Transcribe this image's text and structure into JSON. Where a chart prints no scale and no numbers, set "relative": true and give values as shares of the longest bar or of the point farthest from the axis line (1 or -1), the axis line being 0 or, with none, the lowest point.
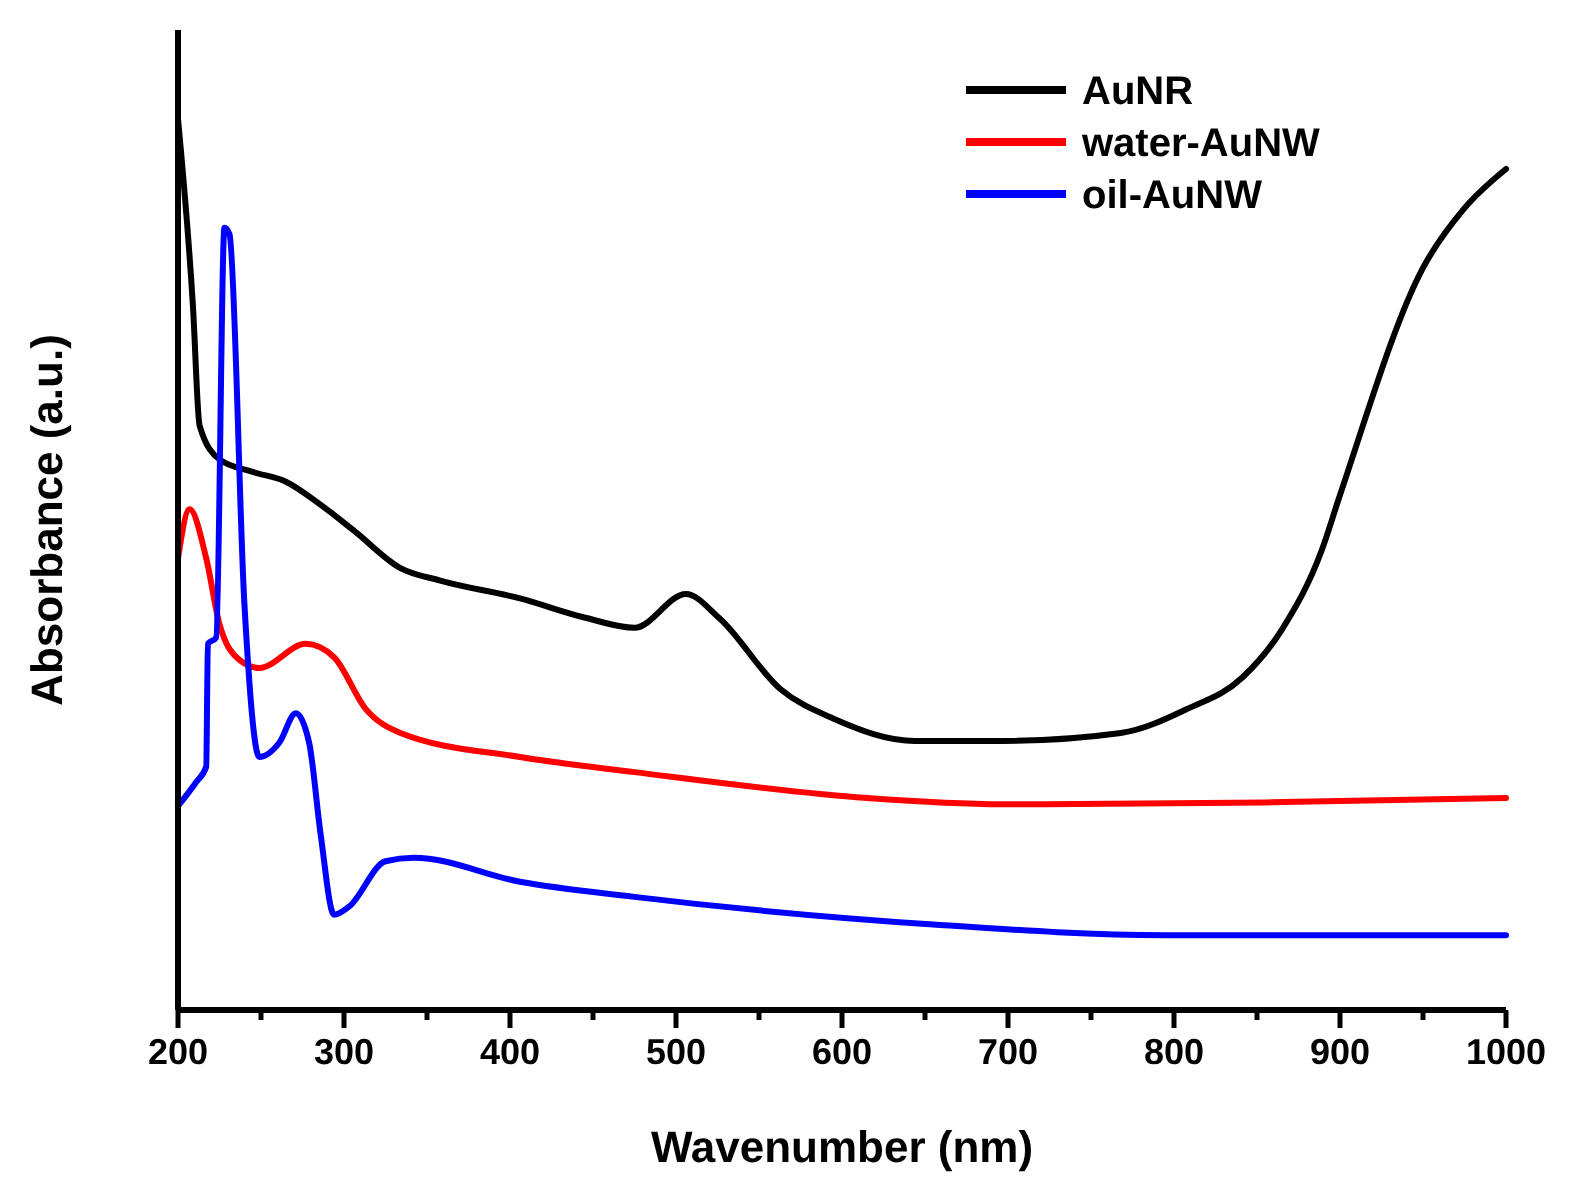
{
  "chart_data": {
    "type": "line",
    "xlabel": "Wavenumber (nm)",
    "ylabel": "Absorbance (a.u.)",
    "relative": true,
    "xlim": [
      200,
      1000
    ],
    "xticks": [
      200,
      {
        "value": 250,
        "label": null
      },
      300,
      {
        "value": 350,
        "label": null
      },
      400,
      {
        "value": 450,
        "label": null
      },
      500,
      {
        "value": 550,
        "label": null
      },
      600,
      {
        "value": 650,
        "label": null
      },
      700,
      {
        "value": 750,
        "label": null
      },
      800,
      {
        "value": 850,
        "label": null
      },
      900,
      {
        "value": 950,
        "label": null
      },
      1000
    ],
    "legend": "top right",
    "grid": false,
    "line_style": "solid",
    "series": [
      {
        "name": "AuNR",
        "color": "#000000",
        "x": [
          200,
          209,
          213,
          225,
          245,
          265,
          286,
          306,
          334,
          358,
          406,
          446,
          475,
          506,
          526,
          563,
          595,
          644,
          696,
          768,
          808,
          841,
          865,
          889,
          900,
          950,
          975,
          1000
        ],
        "values": [
          1.0,
          0.79,
          0.656,
          0.618,
          0.604,
          0.593,
          0.567,
          0.538,
          0.496,
          0.482,
          0.462,
          0.44,
          0.429,
          0.467,
          0.44,
          0.36,
          0.327,
          0.302,
          0.302,
          0.311,
          0.338,
          0.373,
          0.427,
          0.516,
          0.578,
          0.833,
          0.9,
          0.944
        ]
      },
      {
        "name": "water-AuNW",
        "color": "#ff0000",
        "x": [
          200,
          207,
          217,
          225,
          237,
          249,
          277,
          294,
          313,
          334,
          406,
          475,
          615,
          696,
          856,
          1000
        ],
        "values": [
          0.507,
          0.562,
          0.507,
          0.433,
          0.393,
          0.384,
          0.411,
          0.396,
          0.338,
          0.311,
          0.284,
          0.267,
          0.238,
          0.231,
          0.233,
          0.238
        ]
      },
      {
        "name": "oil-AuNW",
        "color": "#0000ff",
        "x": [
          200,
          211,
          217,
          218,
          223,
          228,
          231,
          240,
          249,
          261,
          271,
          279,
          286,
          294,
          303,
          325,
          342,
          406,
          475,
          655,
          795,
          1000
        ],
        "values": [
          0.229,
          0.256,
          0.273,
          0.411,
          0.418,
          0.878,
          0.871,
          0.456,
          0.284,
          0.3,
          0.333,
          0.3,
          0.196,
          0.107,
          0.116,
          0.167,
          0.171,
          0.144,
          0.127,
          0.096,
          0.084,
          0.084
        ]
      }
    ]
  }
}
